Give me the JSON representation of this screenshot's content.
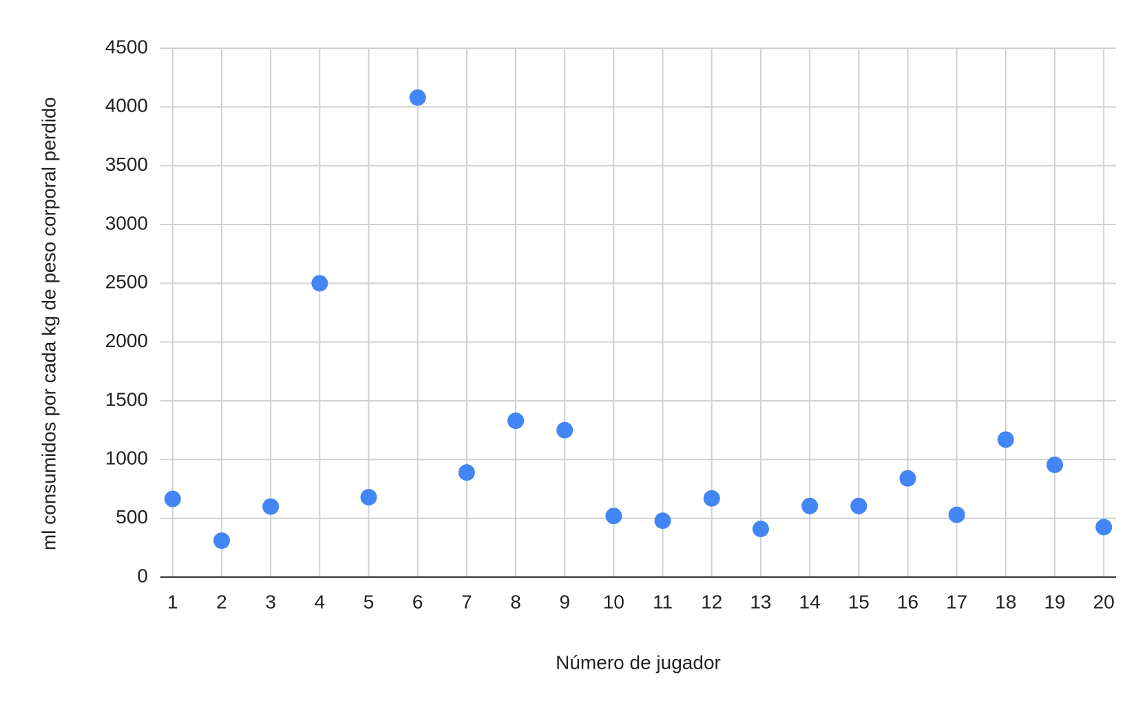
{
  "chart_data": {
    "type": "scatter",
    "x_label": "Número de jugador",
    "y_label": "ml consumidos por cada kg de peso corporal perdido",
    "x": [
      1,
      2,
      3,
      4,
      5,
      6,
      7,
      8,
      9,
      10,
      11,
      12,
      13,
      14,
      15,
      16,
      17,
      18,
      19,
      20
    ],
    "values": [
      665,
      310,
      600,
      2500,
      680,
      4080,
      890,
      1330,
      1250,
      520,
      480,
      670,
      410,
      605,
      605,
      840,
      530,
      1170,
      955,
      425
    ],
    "color": "#4285f4",
    "xlim": [
      0.75,
      20.25
    ],
    "xticks": [
      1,
      2,
      3,
      4,
      5,
      6,
      7,
      8,
      9,
      10,
      11,
      12,
      13,
      14,
      15,
      16,
      17,
      18,
      19,
      20
    ],
    "ylim": [
      0,
      4500
    ],
    "yticks": [
      0,
      500,
      1000,
      1500,
      2000,
      2500,
      3000,
      3500,
      4000,
      4500
    ],
    "grid": true
  }
}
